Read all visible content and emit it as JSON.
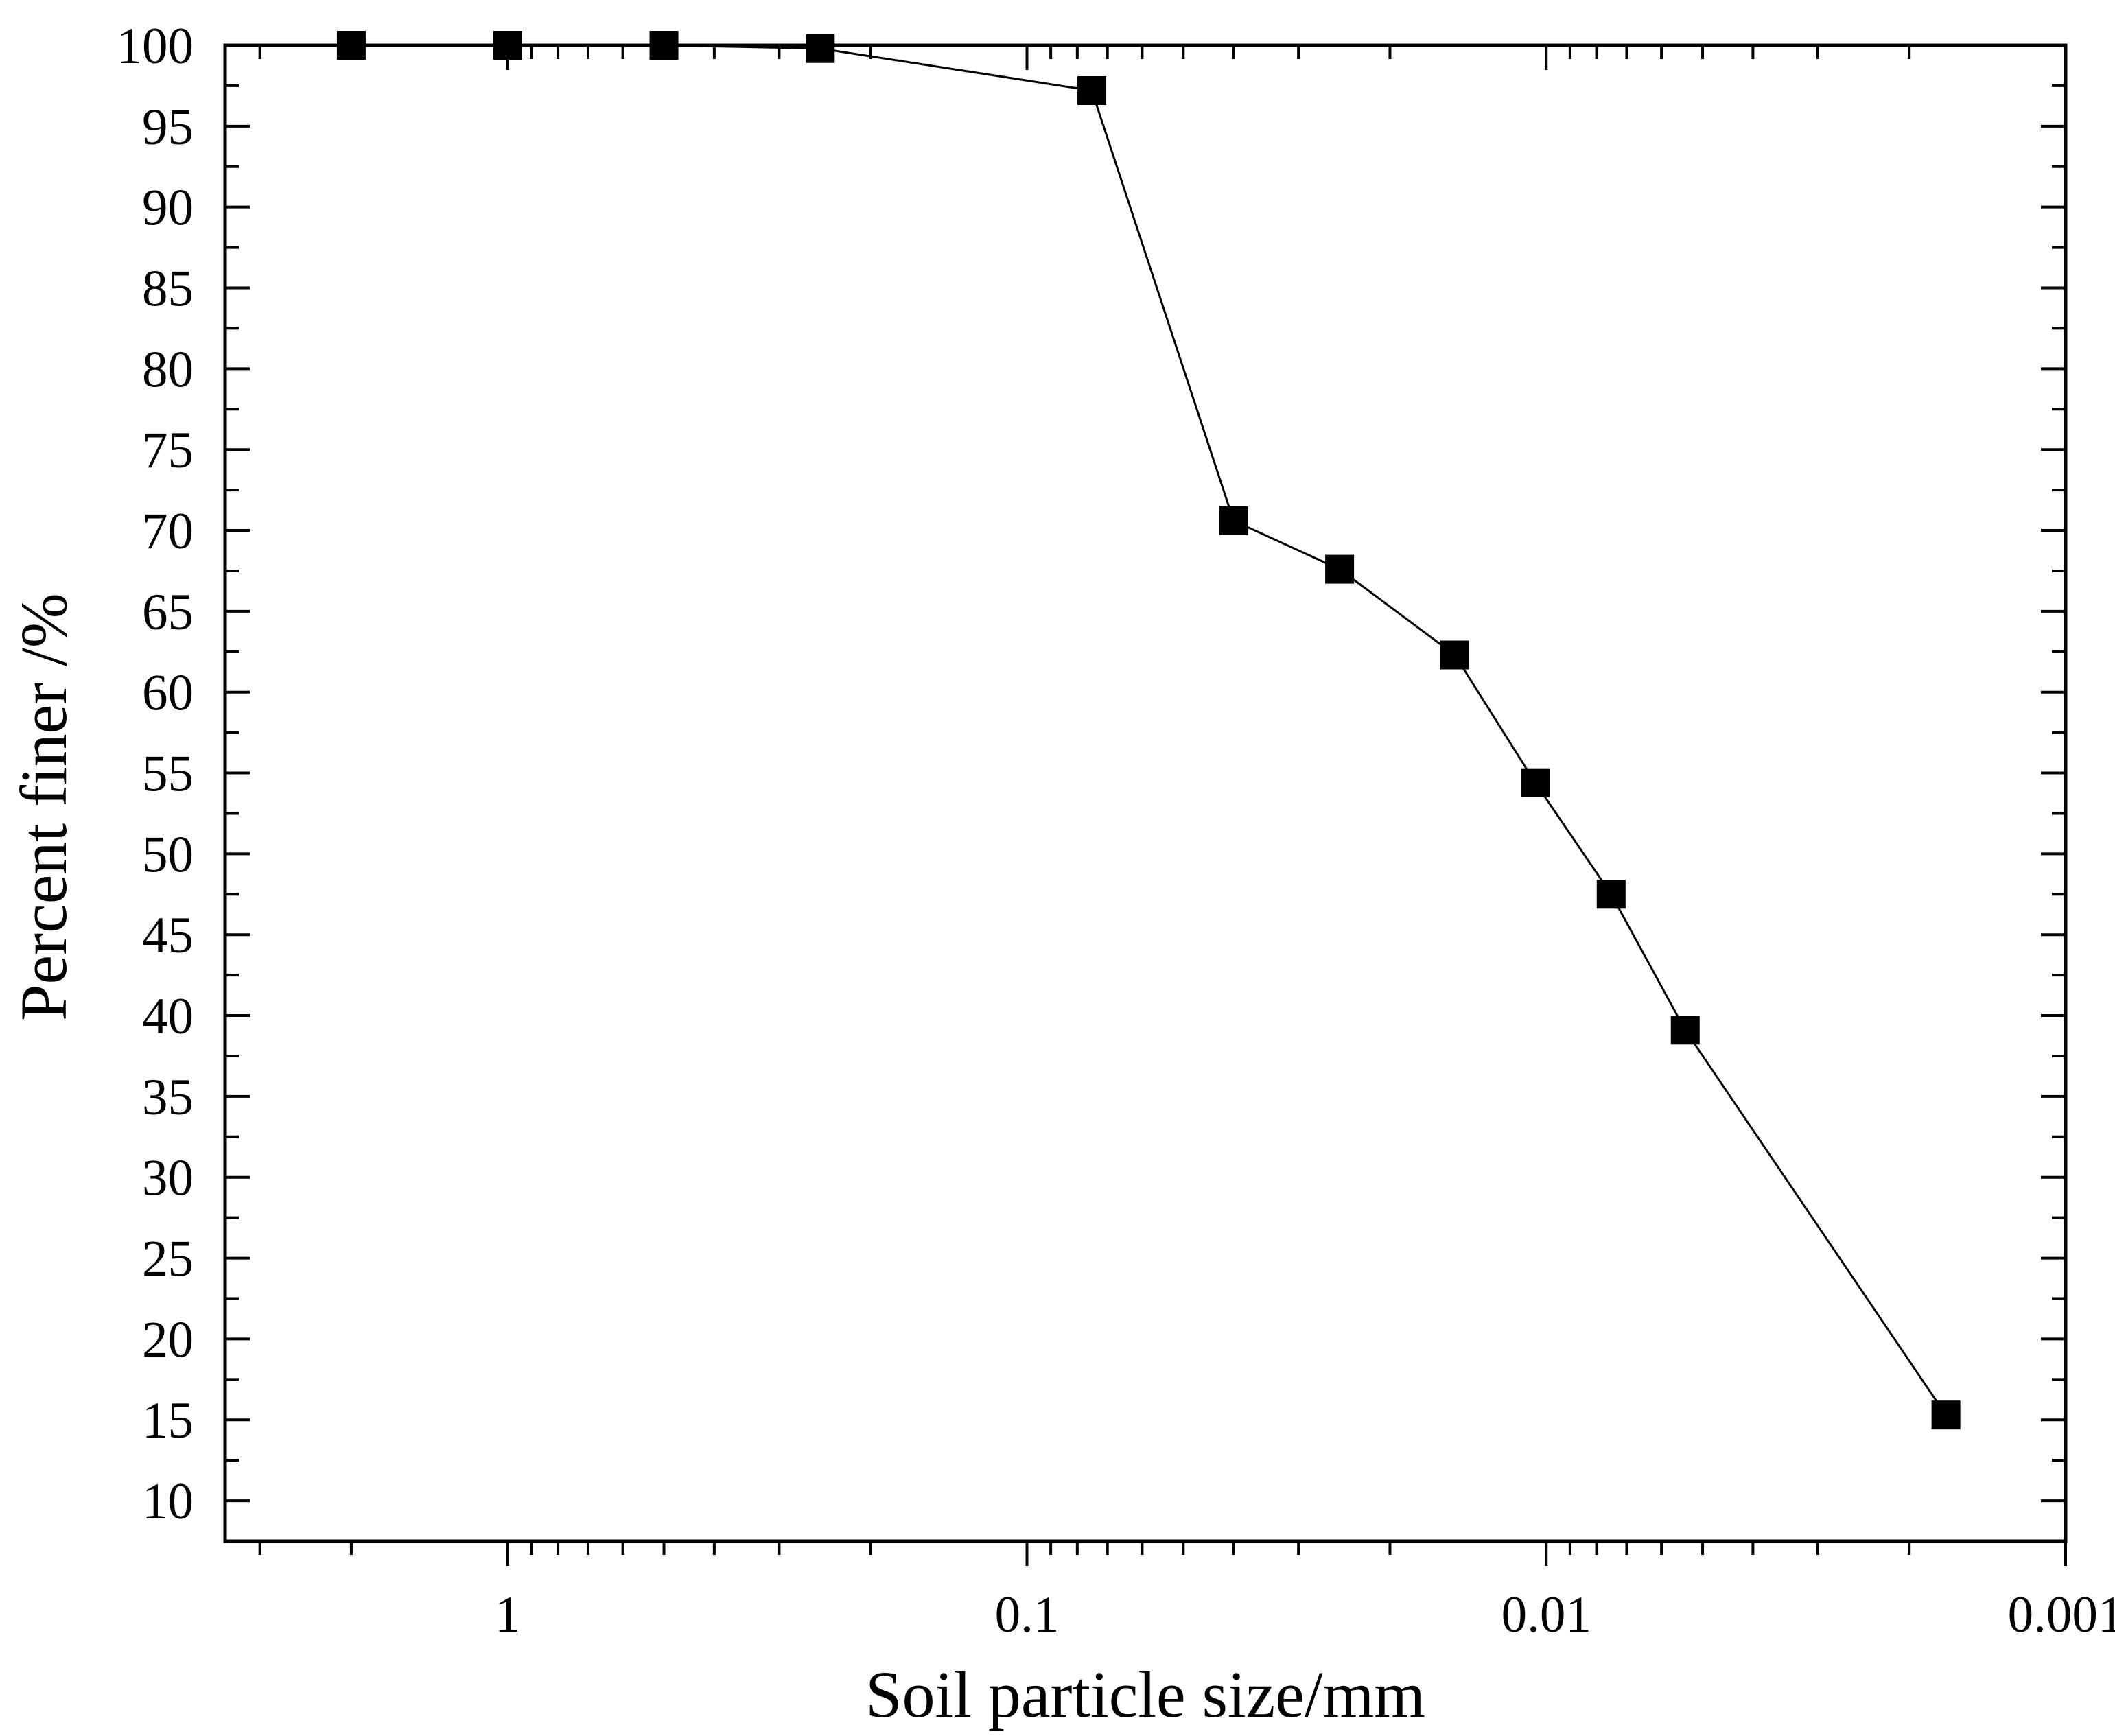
{
  "chart_data": {
    "type": "line",
    "title": "",
    "xlabel": "Soil particle size/mm",
    "ylabel": "Percent finer /%",
    "x_scale": "log",
    "x_reversed": true,
    "xlim": [
      3.5,
      0.001
    ],
    "ylim": [
      7.5,
      100
    ],
    "x_ticks": [
      1,
      0.1,
      0.01,
      0.001
    ],
    "x_tick_labels": [
      "1",
      "0.1",
      "0.01",
      "0.001"
    ],
    "y_ticks": [
      10,
      15,
      20,
      25,
      30,
      35,
      40,
      45,
      50,
      55,
      60,
      65,
      70,
      75,
      80,
      85,
      90,
      95,
      100
    ],
    "y_tick_labels": [
      "10",
      "15",
      "20",
      "25",
      "30",
      "35",
      "40",
      "45",
      "50",
      "55",
      "60",
      "65",
      "70",
      "75",
      "80",
      "85",
      "90",
      "95",
      "100"
    ],
    "grid": false,
    "legend": "none",
    "marker": "square",
    "color": "#000000",
    "series": [
      {
        "x": [
          2,
          1,
          0.5,
          0.25,
          0.075,
          0.04,
          0.025,
          0.015,
          0.0105,
          0.0075,
          0.0054,
          0.0017
        ],
        "y": [
          100,
          100,
          100,
          99.8,
          97.2,
          70.6,
          67.6,
          62.3,
          54.4,
          47.5,
          39.1,
          15.3
        ]
      }
    ]
  }
}
